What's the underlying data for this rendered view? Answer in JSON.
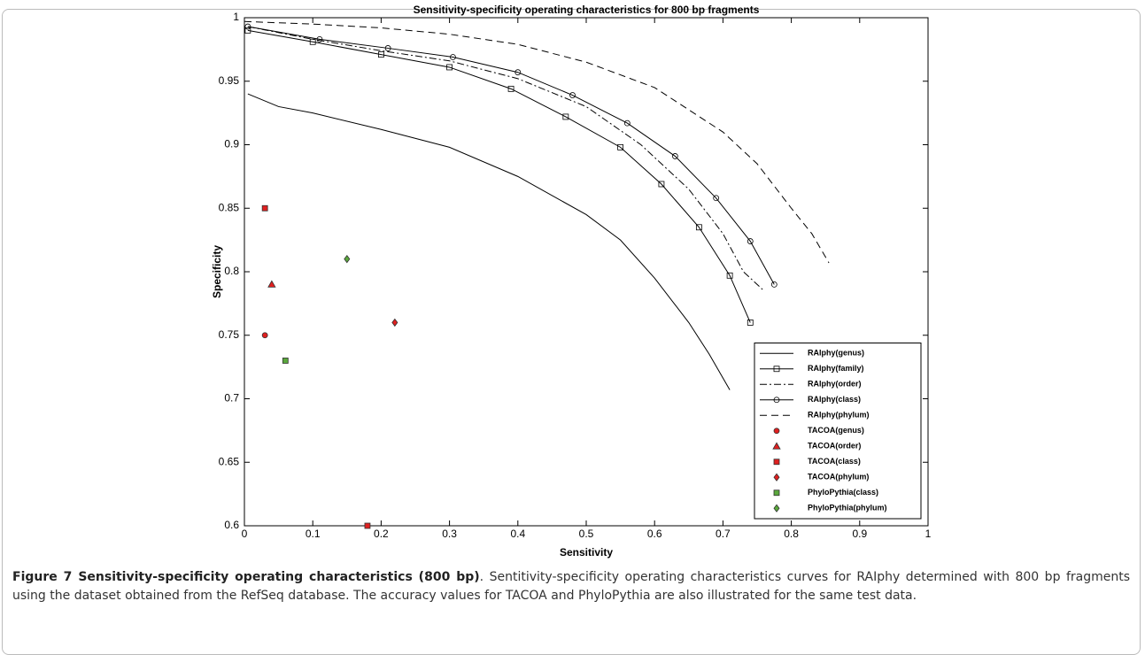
{
  "chart_data": {
    "type": "line",
    "title": "Sensitivity-specificity operating characteristics for 800 bp fragments",
    "xlabel": "Sensitivity",
    "ylabel": "Specificity",
    "xlim": [
      0,
      1
    ],
    "xticks": [
      0,
      0.1,
      0.2,
      0.3,
      0.4,
      0.5,
      0.6,
      0.7,
      0.8,
      0.9,
      1
    ],
    "ylim": [
      0.6,
      1
    ],
    "yticks": [
      0.6,
      0.65,
      0.7,
      0.75,
      0.8,
      0.85,
      0.9,
      0.95,
      1
    ],
    "legend": "lower right",
    "series": [
      {
        "name": "RAIphy(genus)",
        "color": "#000000",
        "style": "solid",
        "marker": "none",
        "filled": false,
        "x": [
          0.005,
          0.05,
          0.1,
          0.2,
          0.3,
          0.4,
          0.5,
          0.55,
          0.6,
          0.65,
          0.68,
          0.71
        ],
        "values": [
          0.94,
          0.93,
          0.925,
          0.912,
          0.898,
          0.875,
          0.845,
          0.825,
          0.795,
          0.76,
          0.735,
          0.707
        ]
      },
      {
        "name": "RAIphy(family)",
        "color": "#000000",
        "style": "solid",
        "marker": "square",
        "filled": false,
        "x": [
          0.005,
          0.1,
          0.2,
          0.3,
          0.39,
          0.47,
          0.55,
          0.61,
          0.665,
          0.71,
          0.74
        ],
        "values": [
          0.99,
          0.981,
          0.971,
          0.961,
          0.944,
          0.922,
          0.898,
          0.869,
          0.835,
          0.797,
          0.76
        ]
      },
      {
        "name": "RAIphy(order)",
        "color": "#000000",
        "style": "dashdot",
        "marker": "none",
        "filled": false,
        "x": [
          0.005,
          0.1,
          0.2,
          0.3,
          0.4,
          0.5,
          0.58,
          0.65,
          0.7,
          0.73,
          0.76
        ],
        "values": [
          0.993,
          0.983,
          0.974,
          0.966,
          0.952,
          0.93,
          0.9,
          0.865,
          0.83,
          0.8,
          0.785
        ]
      },
      {
        "name": "RAIphy(class)",
        "color": "#000000",
        "style": "solid",
        "marker": "circle",
        "filled": false,
        "x": [
          0.005,
          0.11,
          0.21,
          0.305,
          0.4,
          0.48,
          0.56,
          0.63,
          0.69,
          0.74,
          0.775
        ],
        "values": [
          0.993,
          0.983,
          0.976,
          0.969,
          0.957,
          0.939,
          0.917,
          0.891,
          0.858,
          0.824,
          0.79
        ]
      },
      {
        "name": "RAIphy(phylum)",
        "color": "#000000",
        "style": "dashed",
        "marker": "none",
        "filled": false,
        "x": [
          0,
          0.1,
          0.2,
          0.3,
          0.4,
          0.5,
          0.6,
          0.7,
          0.75,
          0.8,
          0.83,
          0.855
        ],
        "values": [
          0.997,
          0.995,
          0.992,
          0.987,
          0.979,
          0.965,
          0.945,
          0.91,
          0.885,
          0.85,
          0.83,
          0.807
        ]
      },
      {
        "name": "TACOA(genus)",
        "color": "#e02020",
        "style": "none",
        "marker": "circle",
        "filled": true,
        "x": [
          0.03
        ],
        "values": [
          0.75
        ]
      },
      {
        "name": "TACOA(order)",
        "color": "#e02020",
        "style": "none",
        "marker": "triangle",
        "filled": true,
        "x": [
          0.04
        ],
        "values": [
          0.79
        ]
      },
      {
        "name": "TACOA(class)",
        "color": "#e02020",
        "style": "none",
        "marker": "square",
        "filled": true,
        "x": [
          0.03,
          0.18
        ],
        "values": [
          0.85,
          0.6
        ]
      },
      {
        "name": "TACOA(phylum)",
        "color": "#e02020",
        "style": "none",
        "marker": "diamond",
        "filled": true,
        "x": [
          0.22
        ],
        "values": [
          0.76
        ]
      },
      {
        "name": "PhyloPythia(class)",
        "color": "#5aa83c",
        "style": "none",
        "marker": "square",
        "filled": true,
        "x": [
          0.06
        ],
        "values": [
          0.73
        ]
      },
      {
        "name": "PhyloPythia(phylum)",
        "color": "#5aa83c",
        "style": "none",
        "marker": "diamond",
        "filled": true,
        "x": [
          0.15
        ],
        "values": [
          0.81
        ]
      }
    ]
  },
  "caption": {
    "label": "Figure 7 Sensitivity-specificity operating characteristics (800 bp)",
    "text": ". Sentitivity-specificity operating characteristics curves for RAIphy determined with 800 bp fragments using the dataset obtained from the RefSeq database. The accuracy values for TACOA and PhyloPythia are also illustrated for the same test data."
  }
}
